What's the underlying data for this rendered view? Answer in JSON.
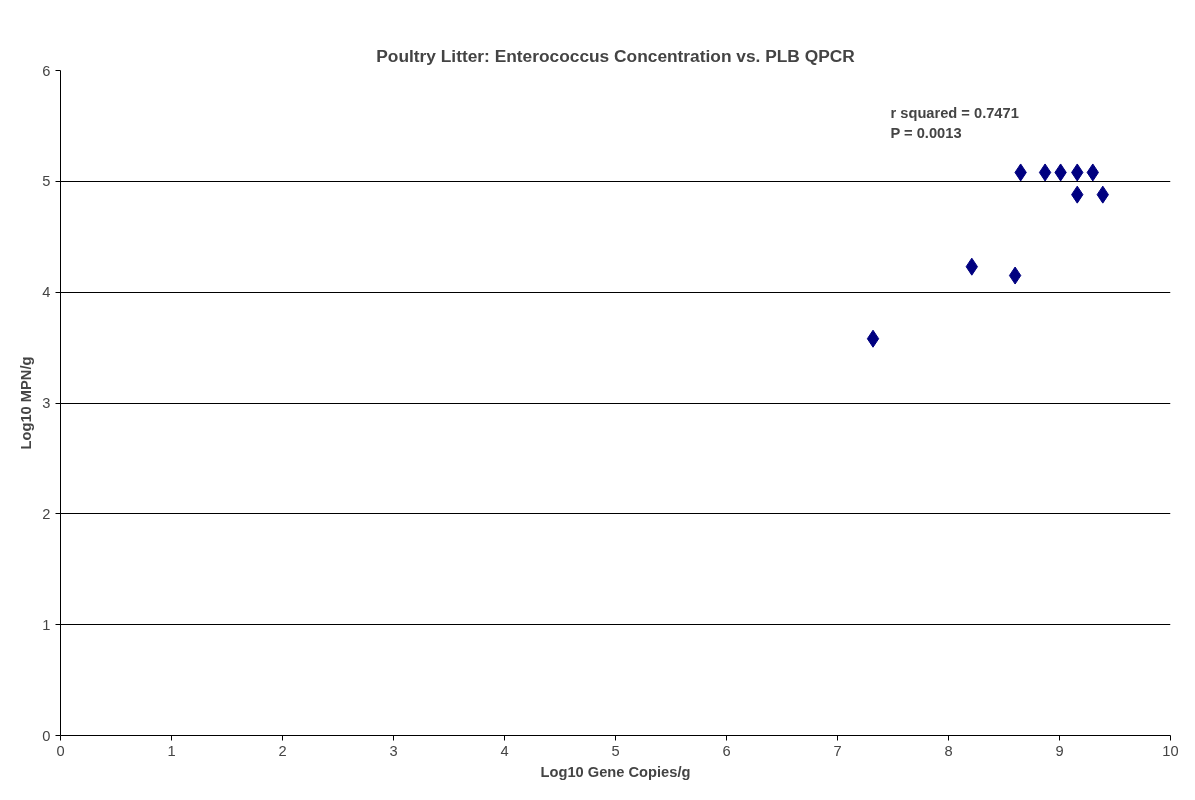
{
  "chart_data": {
    "type": "scatter",
    "title": "Poultry Litter: Enterococcus Concentration vs. PLB QPCR",
    "xlabel": "Log10 Gene Copies/g",
    "ylabel": "Log10 MPN/g",
    "series": [
      {
        "color": "#000080",
        "x": [
          8.65,
          8.87,
          9.01,
          9.16,
          9.3,
          9.16,
          9.39,
          8.21,
          8.6,
          7.32
        ],
        "values": [
          5.08,
          5.08,
          5.08,
          5.08,
          5.08,
          4.88,
          4.88,
          4.23,
          4.15,
          3.58
        ]
      }
    ],
    "xlim": [
      0,
      10
    ],
    "xticks": [
      0,
      1,
      2,
      3,
      4,
      5,
      6,
      7,
      8,
      9,
      10
    ],
    "ylim": [
      0,
      6
    ],
    "yticks": [
      0,
      1,
      2,
      3,
      4,
      5,
      6
    ],
    "grid": "y",
    "marker": "diamond",
    "annotations": [
      "r squared  = 0.7471",
      "P = 0.0013"
    ]
  }
}
